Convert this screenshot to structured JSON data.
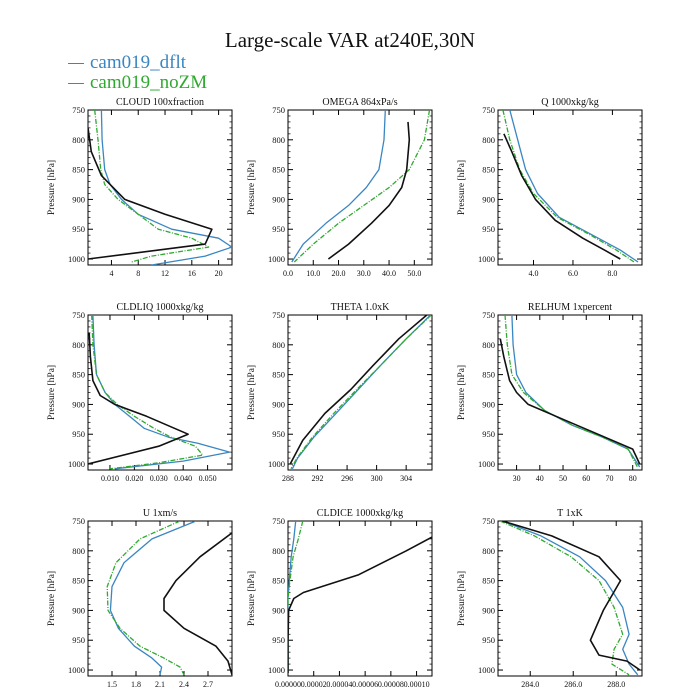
{
  "title": "Large-scale VAR at240E,30N",
  "legend": [
    {
      "name": "cam019_dflt",
      "color": "#3a86c2"
    },
    {
      "name": "cam019_noZM",
      "color": "#2faa2f"
    }
  ],
  "ylabel": "Pressure [hPa]",
  "chart_data": [
    {
      "type": "line",
      "title": "CLOUD  100xfraction",
      "ylim": [
        750,
        1010
      ],
      "yticks": [
        750,
        800,
        850,
        900,
        950,
        1000
      ],
      "xlim": [
        0.5,
        22
      ],
      "xticks": [
        4,
        8,
        12,
        16,
        20
      ],
      "xticklabels": [
        "4",
        "8",
        "12",
        "16",
        "20"
      ],
      "series": [
        {
          "name": "cam019_dflt",
          "x": [
            2.5,
            2.6,
            3.0,
            3.8,
            5.5,
            8.0,
            13.0,
            20.0,
            22.0,
            18.0,
            10.0
          ],
          "y": [
            750,
            800,
            850,
            875,
            900,
            925,
            950,
            965,
            980,
            995,
            1010
          ]
        },
        {
          "name": "cam019_noZM",
          "x": [
            1.5,
            2.0,
            2.4,
            3.0,
            5.0,
            8.0,
            11.0,
            16.0,
            18.5,
            10.0,
            7.0
          ],
          "y": [
            750,
            800,
            850,
            875,
            900,
            925,
            950,
            965,
            980,
            995,
            1005
          ]
        },
        {
          "name": "",
          "x": [
            0.5,
            1.0,
            2.5,
            6.0,
            12.0,
            19.0,
            18.0,
            0.5
          ],
          "y": [
            780,
            820,
            860,
            900,
            925,
            950,
            975,
            1000
          ]
        }
      ]
    },
    {
      "type": "line",
      "title": "OMEGA  864xPa/s",
      "ylim": [
        750,
        1010
      ],
      "yticks": [
        750,
        800,
        850,
        900,
        950,
        1000
      ],
      "xlim": [
        0,
        57
      ],
      "xticks": [
        0,
        10,
        20,
        30,
        40,
        50
      ],
      "xticklabels": [
        "0.0",
        "10.0",
        "20.0",
        "30.0",
        "40.0",
        "50.0"
      ],
      "series": [
        {
          "name": "cam019_dflt",
          "x": [
            38.5,
            38.0,
            36.0,
            31.0,
            24.0,
            15.0,
            6.0,
            1.5
          ],
          "y": [
            750,
            800,
            850,
            880,
            910,
            940,
            975,
            1005
          ]
        },
        {
          "name": "cam019_noZM",
          "x": [
            56.0,
            54.0,
            48.0,
            40.0,
            30.0,
            20.0,
            10.0,
            2.5
          ],
          "y": [
            750,
            800,
            850,
            880,
            910,
            940,
            975,
            1005
          ]
        },
        {
          "name": "",
          "x": [
            47.5,
            48.0,
            47.0,
            45.0,
            40.0,
            33.0,
            24.0,
            16.0
          ],
          "y": [
            770,
            800,
            850,
            880,
            910,
            940,
            975,
            1000
          ]
        }
      ]
    },
    {
      "type": "line",
      "title": "Q  1000xkg/kg",
      "ylim": [
        750,
        1010
      ],
      "yticks": [
        750,
        800,
        850,
        900,
        950,
        1000
      ],
      "xlim": [
        2.2,
        9.5
      ],
      "xticks": [
        4,
        6,
        8
      ],
      "xticklabels": [
        "4.0",
        "6.0",
        "8.0"
      ],
      "series": [
        {
          "name": "cam019_dflt",
          "x": [
            2.8,
            3.2,
            3.6,
            4.2,
            5.3,
            7.0,
            8.4,
            9.3
          ],
          "y": [
            750,
            800,
            850,
            890,
            930,
            960,
            985,
            1005
          ]
        },
        {
          "name": "cam019_noZM",
          "x": [
            2.45,
            2.8,
            3.3,
            4.0,
            5.2,
            6.9,
            8.2,
            9.1
          ],
          "y": [
            750,
            800,
            850,
            890,
            930,
            960,
            985,
            1005
          ]
        },
        {
          "name": "",
          "x": [
            2.5,
            2.9,
            3.4,
            4.1,
            5.1,
            6.5,
            7.6,
            8.4
          ],
          "y": [
            790,
            820,
            860,
            900,
            935,
            965,
            985,
            1000
          ]
        }
      ]
    },
    {
      "type": "line",
      "title": "CLDLIQ  1000xkg/kg",
      "ylim": [
        750,
        1010
      ],
      "yticks": [
        750,
        800,
        850,
        900,
        950,
        1000
      ],
      "xlim": [
        0.001,
        0.06
      ],
      "xticks": [
        0.01,
        0.02,
        0.03,
        0.04,
        0.05
      ],
      "xticklabels": [
        "0.010",
        "0.020",
        "0.030",
        "0.040",
        "0.050"
      ],
      "series": [
        {
          "name": "cam019_dflt",
          "x": [
            0.003,
            0.0035,
            0.0045,
            0.008,
            0.012,
            0.018,
            0.024,
            0.034,
            0.046,
            0.059,
            0.04,
            0.012
          ],
          "y": [
            750,
            800,
            850,
            880,
            900,
            920,
            940,
            955,
            965,
            980,
            995,
            1008
          ]
        },
        {
          "name": "cam019_noZM",
          "x": [
            0.0025,
            0.003,
            0.0045,
            0.008,
            0.013,
            0.02,
            0.028,
            0.035,
            0.045,
            0.048,
            0.03,
            0.01
          ],
          "y": [
            750,
            800,
            850,
            880,
            900,
            920,
            940,
            955,
            970,
            985,
            998,
            1008
          ]
        },
        {
          "name": "",
          "x": [
            0.0015,
            0.002,
            0.003,
            0.006,
            0.012,
            0.025,
            0.042,
            0.03,
            0.001
          ],
          "y": [
            780,
            820,
            860,
            885,
            900,
            920,
            950,
            970,
            1000
          ]
        }
      ]
    },
    {
      "type": "line",
      "title": "THETA  1.0xK",
      "ylim": [
        750,
        1010
      ],
      "yticks": [
        750,
        800,
        850,
        900,
        950,
        1000
      ],
      "xlim": [
        288,
        307.5
      ],
      "xticks": [
        288,
        292,
        296,
        300,
        304
      ],
      "xticklabels": [
        "288",
        "292",
        "296",
        "300",
        "304"
      ],
      "series": [
        {
          "name": "cam019_dflt",
          "x": [
            307.3,
            304.0,
            300.5,
            297.5,
            294.5,
            291.5,
            289.3,
            288.6
          ],
          "y": [
            750,
            790,
            835,
            875,
            915,
            955,
            990,
            1008
          ]
        },
        {
          "name": "cam019_noZM",
          "x": [
            307.4,
            304.0,
            300.5,
            297.3,
            294.2,
            291.3,
            289.2,
            288.4
          ],
          "y": [
            750,
            790,
            835,
            875,
            915,
            955,
            990,
            1008
          ]
        },
        {
          "name": "",
          "x": [
            306.8,
            303.0,
            299.5,
            296.5,
            293.0,
            290.0,
            288.3
          ],
          "y": [
            750,
            790,
            835,
            875,
            915,
            960,
            1000
          ]
        }
      ]
    },
    {
      "type": "line",
      "title": "RELHUM  1xpercent",
      "ylim": [
        750,
        1010
      ],
      "yticks": [
        750,
        800,
        850,
        900,
        950,
        1000
      ],
      "xlim": [
        22,
        84
      ],
      "xticks": [
        30,
        40,
        50,
        60,
        70,
        80
      ],
      "xticklabels": [
        "30",
        "40",
        "50",
        "60",
        "70",
        "80"
      ],
      "series": [
        {
          "name": "cam019_dflt",
          "x": [
            28.0,
            28.5,
            30.0,
            34.0,
            42.0,
            54.0,
            67.0,
            78.0,
            83.0
          ],
          "y": [
            750,
            800,
            850,
            880,
            910,
            935,
            955,
            975,
            1005
          ]
        },
        {
          "name": "cam019_noZM",
          "x": [
            25.0,
            26.0,
            28.0,
            33.0,
            42.0,
            54.0,
            67.0,
            78.0,
            82.0
          ],
          "y": [
            750,
            800,
            850,
            880,
            910,
            935,
            955,
            975,
            1005
          ]
        },
        {
          "name": "",
          "x": [
            23.0,
            24.5,
            27.0,
            30.0,
            35.0,
            50.0,
            65.0,
            80.0,
            83.0
          ],
          "y": [
            790,
            820,
            860,
            880,
            900,
            925,
            950,
            975,
            1000
          ]
        }
      ]
    },
    {
      "type": "line",
      "title": "U  1xm/s",
      "ylim": [
        750,
        1010
      ],
      "yticks": [
        750,
        800,
        850,
        900,
        950,
        1000
      ],
      "xlim": [
        1.2,
        3.0
      ],
      "xticks": [
        1.5,
        1.8,
        2.1,
        2.4,
        2.7
      ],
      "xticklabels": [
        "1.5",
        "1.8",
        "2.1",
        "2.4",
        "2.7"
      ],
      "series": [
        {
          "name": "cam019_dflt",
          "x": [
            2.55,
            2.0,
            1.65,
            1.5,
            1.48,
            1.58,
            1.78,
            2.0,
            2.12,
            2.1
          ],
          "y": [
            750,
            780,
            820,
            860,
            900,
            930,
            960,
            980,
            995,
            1008
          ]
        },
        {
          "name": "cam019_noZM",
          "x": [
            2.35,
            1.85,
            1.55,
            1.44,
            1.45,
            1.6,
            1.85,
            2.15,
            2.35,
            2.4
          ],
          "y": [
            750,
            780,
            820,
            860,
            900,
            930,
            960,
            980,
            995,
            1008
          ]
        },
        {
          "name": "",
          "x": [
            3.0,
            2.6,
            2.3,
            2.15,
            2.15,
            2.4,
            2.8,
            2.95,
            3.0
          ],
          "y": [
            770,
            810,
            850,
            880,
            900,
            930,
            960,
            985,
            1008
          ]
        }
      ]
    },
    {
      "type": "line",
      "title": "CLDICE  1000xkg/kg",
      "ylim": [
        750,
        1010
      ],
      "yticks": [
        750,
        800,
        850,
        900,
        950,
        1000
      ],
      "xlim": [
        0,
        0.000112
      ],
      "xticks": [
        0,
        2e-05,
        4e-05,
        6e-05,
        8e-05,
        0.0001
      ],
      "xticklabels": [
        "0.00000",
        "0.00002",
        "0.00004",
        "0.00006",
        "0.00008",
        "0.00010"
      ],
      "series": [
        {
          "name": "cam019_dflt",
          "x": [
            6e-06,
            4.5e-06,
            2.5e-06,
            1e-06,
            0.0,
            0.0,
            0.0,
            0.0
          ],
          "y": [
            750,
            780,
            810,
            850,
            880,
            920,
            960,
            1005
          ]
        },
        {
          "name": "cam019_noZM",
          "x": [
            1.15e-05,
            8e-06,
            4e-06,
            1.5e-06,
            0.0,
            0.0,
            0.0,
            0.0
          ],
          "y": [
            750,
            780,
            810,
            850,
            880,
            920,
            960,
            1005
          ]
        },
        {
          "name": "",
          "x": [
            0.000112,
            9.2e-05,
            5.5e-05,
            1.2e-05,
            4.5e-06,
            5e-07,
            0.0,
            0.0
          ],
          "y": [
            777,
            800,
            840,
            870,
            880,
            900,
            950,
            1005
          ]
        }
      ]
    },
    {
      "type": "line",
      "title": "T  1xK",
      "ylim": [
        750,
        1010
      ],
      "yticks": [
        750,
        800,
        850,
        900,
        950,
        1000
      ],
      "xlim": [
        282.5,
        289.2
      ],
      "xticks": [
        284,
        286,
        288
      ],
      "xticklabels": [
        "284.0",
        "286.0",
        "288.0"
      ],
      "series": [
        {
          "name": "cam019_dflt",
          "x": [
            282.7,
            284.5,
            286.3,
            287.5,
            288.3,
            288.6,
            288.3,
            288.6,
            289.0
          ],
          "y": [
            750,
            775,
            810,
            850,
            895,
            940,
            965,
            990,
            1008
          ]
        },
        {
          "name": "cam019_noZM",
          "x": [
            282.6,
            284.2,
            285.9,
            287.2,
            287.9,
            288.3,
            287.9,
            287.8,
            288.6
          ],
          "y": [
            750,
            775,
            810,
            850,
            895,
            940,
            965,
            990,
            1008
          ]
        },
        {
          "name": "",
          "x": [
            282.7,
            285.0,
            287.2,
            288.2,
            287.4,
            286.8,
            287.2,
            288.5,
            289.1
          ],
          "y": [
            750,
            775,
            810,
            850,
            900,
            950,
            975,
            985,
            1000
          ]
        }
      ]
    }
  ]
}
